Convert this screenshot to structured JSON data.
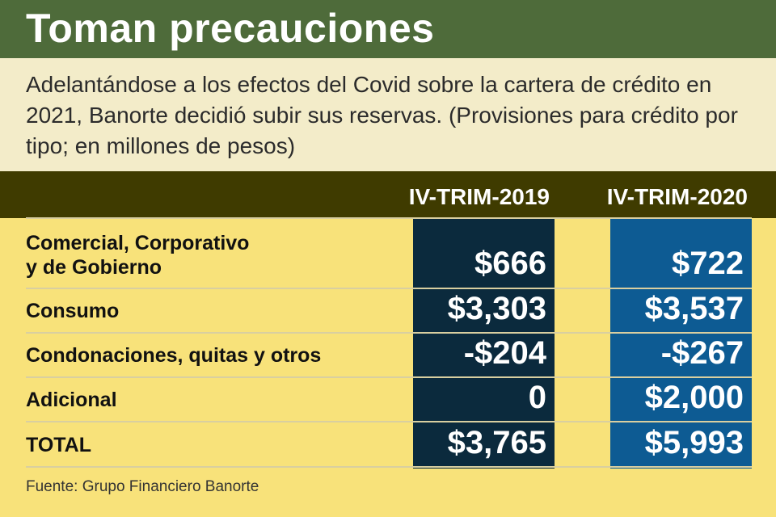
{
  "title": "Toman precauciones",
  "subtitle": "Adelantándose a los efectos del Covid sobre la cartera de crédito en 2021, Banorte decidió subir sus reservas. (Provisiones para crédito por tipo; en millones de pesos)",
  "source": "Fuente: Grupo Financiero Banorte",
  "colors": {
    "title_bg": "#4e6b3a",
    "header_bg": "#3f3b00",
    "col_2019": "#0b2a3d",
    "col_2020": "#0d5b93",
    "page_bg": "#f8e27a"
  },
  "chart_data": {
    "type": "table",
    "columns": [
      "IV-TRIM-2019",
      "IV-TRIM-2020"
    ],
    "rows": [
      {
        "label_line1": "Comercial, Corporativo",
        "label_line2": "y de Gobierno",
        "v2019": "$666",
        "v2020": "$722"
      },
      {
        "label_line1": "Consumo",
        "v2019": "$3,303",
        "v2020": "$3,537"
      },
      {
        "label_line1": "Condonaciones, quitas y otros",
        "v2019": "-$204",
        "v2020": "-$267"
      },
      {
        "label_line1": "Adicional",
        "v2019": "0",
        "v2020": "$2,000"
      },
      {
        "label_line1": "TOTAL",
        "v2019": "$3,765",
        "v2020": "$5,993"
      }
    ]
  }
}
